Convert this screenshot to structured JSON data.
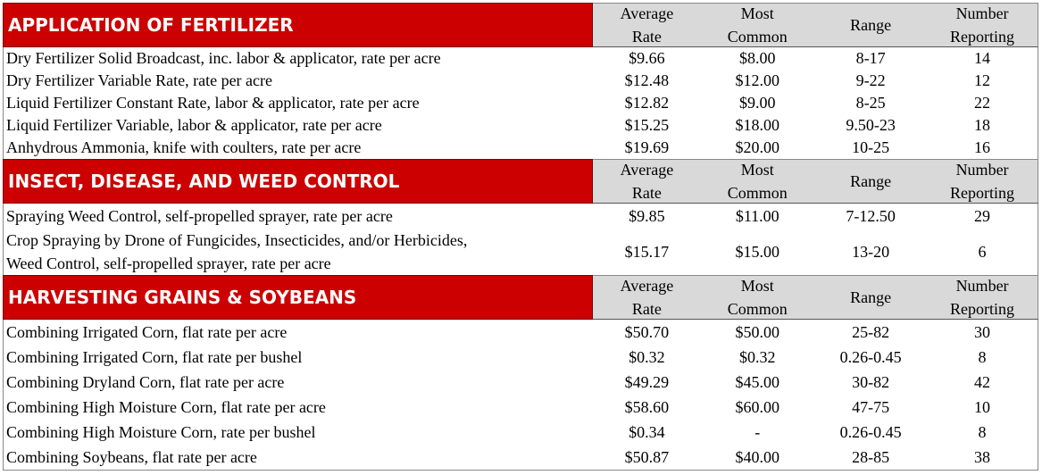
{
  "sections": [
    {
      "title": "APPLICATION OF FERTILIZER",
      "headers": {
        "avg": [
          "Average",
          "Rate"
        ],
        "common": [
          "Most",
          "Common"
        ],
        "range": "Range",
        "num": [
          "Number",
          "Reporting"
        ]
      },
      "rows": [
        {
          "label": "Dry Fertilizer Solid Broadcast, inc. labor & applicator, rate per acre",
          "avg": "$9.66",
          "common": "$8.00",
          "range": "8-17",
          "num": "14"
        },
        {
          "label": "Dry Fertilizer Variable Rate, rate per acre",
          "avg": "$12.48",
          "common": "$12.00",
          "range": "9-22",
          "num": "12"
        },
        {
          "label": "Liquid Fertilizer Constant Rate, labor & applicator, rate per acre",
          "avg": "$12.82",
          "common": "$9.00",
          "range": "8-25",
          "num": "22"
        },
        {
          "label": "Liquid Fertilizer Variable, labor & applicator, rate per acre",
          "avg": "$15.25",
          "common": "$18.00",
          "range": "9.50-23",
          "num": "18"
        },
        {
          "label": "Anhydrous Ammonia, knife with coulters, rate per acre",
          "avg": "$19.69",
          "common": "$20.00",
          "range": "10-25",
          "num": "16"
        }
      ]
    },
    {
      "title": "INSECT, DISEASE, AND WEED CONTROL",
      "headers": {
        "avg": [
          "Average",
          "Rate"
        ],
        "common": [
          "Most",
          "Common"
        ],
        "range": "Range",
        "num": [
          "Number",
          "Reporting"
        ]
      },
      "rows": [
        {
          "label": "Spraying Weed Control, self-propelled sprayer, rate per acre",
          "avg": "$9.85",
          "common": "$11.00",
          "range": "7-12.50",
          "num": "29"
        },
        {
          "label_lines": [
            "Crop Spraying by Drone of Fungicides, Insecticides, and/or Herbicides,",
            "Weed Control, self-propelled sprayer, rate per acre"
          ],
          "avg": "$15.17",
          "common": "$15.00",
          "range": "13-20",
          "num": "6"
        }
      ]
    },
    {
      "title": "HARVESTING GRAINS & SOYBEANS",
      "headers": {
        "avg": [
          "Average",
          "Rate"
        ],
        "common": [
          "Most",
          "Common"
        ],
        "range": "Range",
        "num": [
          "Number",
          "Reporting"
        ]
      },
      "rows": [
        {
          "label": "Combining Irrigated Corn, flat rate per acre",
          "avg": "$50.70",
          "common": "$50.00",
          "range": "25-82",
          "num": "30"
        },
        {
          "label": "Combining Irrigated Corn, flat rate per bushel",
          "avg": "$0.32",
          "common": "$0.32",
          "range": "0.26-0.45",
          "num": "8"
        },
        {
          "label": "Combining Dryland Corn, flat rate per acre",
          "avg": "$49.29",
          "common": "$45.00",
          "range": "30-82",
          "num": "42"
        },
        {
          "label": "Combining High Moisture Corn, flat rate per acre",
          "avg": "$58.60",
          "common": "$60.00",
          "range": "47-75",
          "num": "10"
        },
        {
          "label": "Combining High Moisture Corn, rate per bushel",
          "avg": "$0.34",
          "common": "-",
          "range": "0.26-0.45",
          "num": "8"
        },
        {
          "label": "Combining Soybeans, flat rate per acre",
          "avg": "$50.87",
          "common": "$40.00",
          "range": "28-85",
          "num": "38"
        }
      ]
    }
  ]
}
